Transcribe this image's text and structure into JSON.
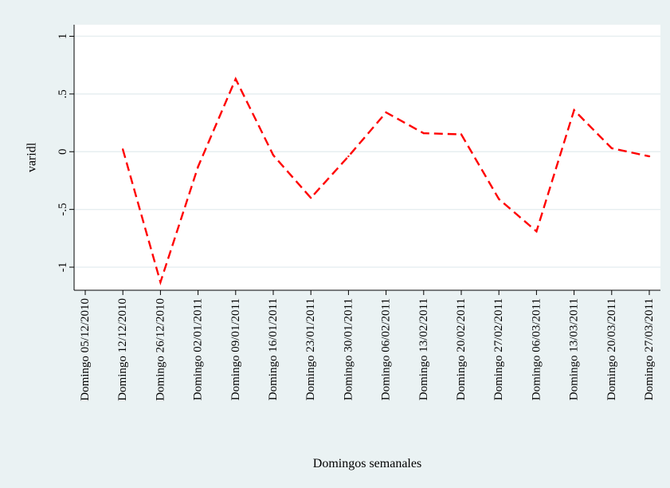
{
  "chart_data": {
    "type": "line",
    "title": "",
    "xlabel": "Domingos semanales",
    "ylabel": "varidl",
    "ylim": [
      -1.2,
      1.1
    ],
    "y_ticks": [
      {
        "value": 1,
        "label": "1"
      },
      {
        "value": 0.5,
        "label": ".5"
      },
      {
        "value": 0,
        "label": "0"
      },
      {
        "value": -0.5,
        "label": "-.5"
      },
      {
        "value": -1,
        "label": "-1"
      }
    ],
    "grid": true,
    "legend": "none",
    "line_style": "dashed",
    "line_color": "#ff0000",
    "categories": [
      "Domingo 05/12/2010",
      "Domingo 12/12/2010",
      "Domingo 26/12/2010",
      "Domingo 02/01/2011",
      "Domingo 09/01/2011",
      "Domingo 16/01/2011",
      "Domingo 23/01/2011",
      "Domingo 30/01/2011",
      "Domingo 06/02/2011",
      "Domingo 13/02/2011",
      "Domingo 20/02/2011",
      "Domingo 27/02/2011",
      "Domingo 06/03/2011",
      "Domingo 13/03/2011",
      "Domingo 20/03/2011",
      "Domingo 27/03/2011"
    ],
    "series": [
      {
        "values": [
          null,
          0.02,
          -1.13,
          -0.13,
          0.63,
          -0.03,
          -0.4,
          -0.04,
          0.34,
          0.16,
          0.15,
          -0.41,
          -0.69,
          0.36,
          0.03,
          -0.04
        ]
      }
    ]
  }
}
